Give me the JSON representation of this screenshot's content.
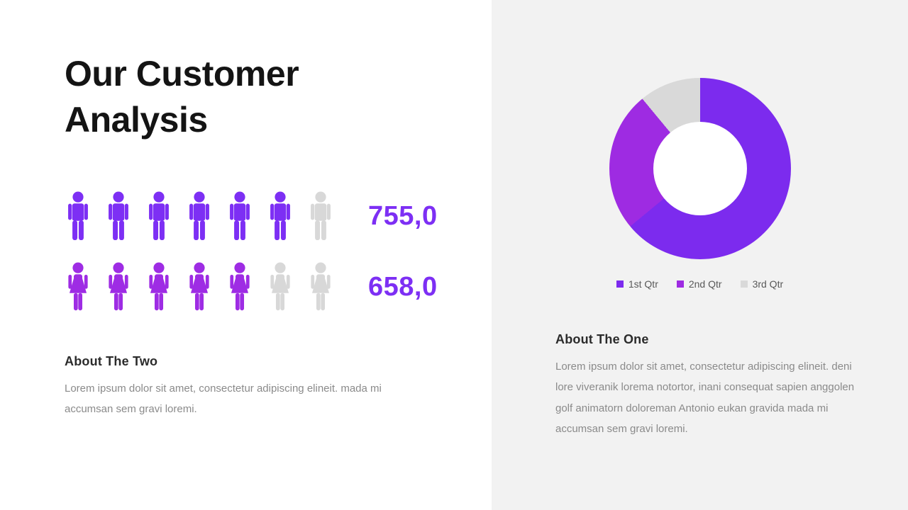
{
  "slide": {
    "title_line1": "Our Customer",
    "title_line2": "Analysis"
  },
  "about_two": {
    "heading": "About The Two",
    "body": "Lorem ipsum dolor sit amet, consectetur adipiscing elineit. mada mi accumsan sem gravi loremi."
  },
  "about_one": {
    "heading": "About The One",
    "body": "Lorem ipsum dolor sit amet, consectetur adipiscing elineit. deni lore viveranik lorema notortor, inani consequat sapien anggolen golf animatorn doloreman Antonio eukan gravida mada mi accumsan sem gravi loremi."
  },
  "chart_data": [
    {
      "type": "pie",
      "style": "donut",
      "title": "",
      "categories": [
        "1st Qtr",
        "2nd Qtr",
        "3rd Qtr"
      ],
      "values": [
        64,
        25,
        11
      ],
      "unit": "%",
      "colors": [
        "#7c2bee",
        "#9e2be2",
        "#d9d9d9"
      ],
      "legend_position": "bottom",
      "start_angle_deg": 0,
      "hole_ratio": 0.52,
      "hole_color": "#ffffff"
    },
    {
      "type": "bar",
      "style": "pictograph",
      "categories": [
        "Men",
        "Women"
      ],
      "values": [
        755.0,
        658.0
      ],
      "value_labels": [
        "755,0",
        "658,0"
      ],
      "icons_total": [
        7,
        7
      ],
      "icons_filled": [
        6,
        5
      ],
      "genders": [
        "male",
        "female"
      ],
      "filled_colors": [
        "#7d2ff4",
        "#9e2ce4"
      ],
      "empty_color": "#d8d8d8",
      "value_label_color": "#7d2ff4"
    }
  ]
}
